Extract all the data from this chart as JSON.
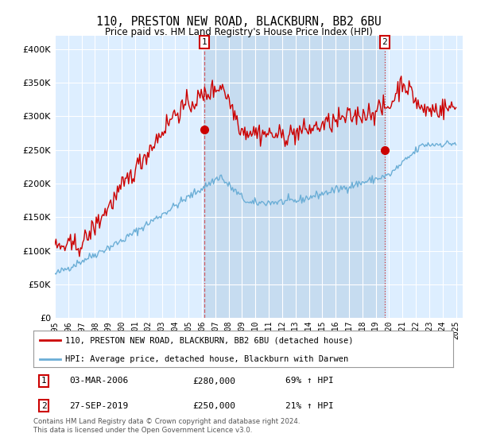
{
  "title": "110, PRESTON NEW ROAD, BLACKBURN, BB2 6BU",
  "subtitle": "Price paid vs. HM Land Registry's House Price Index (HPI)",
  "legend_line1": "110, PRESTON NEW ROAD, BLACKBURN, BB2 6BU (detached house)",
  "legend_line2": "HPI: Average price, detached house, Blackburn with Darwen",
  "footnote": "Contains HM Land Registry data © Crown copyright and database right 2024.\nThis data is licensed under the Open Government Licence v3.0.",
  "marker1_date": "03-MAR-2006",
  "marker1_price": 280000,
  "marker1_hpi_label": "69% ↑ HPI",
  "marker2_date": "27-SEP-2019",
  "marker2_price": 250000,
  "marker2_hpi_label": "21% ↑ HPI",
  "hpi_color": "#6baed6",
  "price_color": "#cc0000",
  "bg_color": "#ddeeff",
  "shade_color": "#c6dcf0",
  "ylim": [
    0,
    420000
  ],
  "yticks": [
    0,
    50000,
    100000,
    150000,
    200000,
    250000,
    300000,
    350000,
    400000
  ],
  "t1": 2006.17,
  "t2": 2019.67,
  "xlim_start": 1995,
  "xlim_end": 2025.5
}
